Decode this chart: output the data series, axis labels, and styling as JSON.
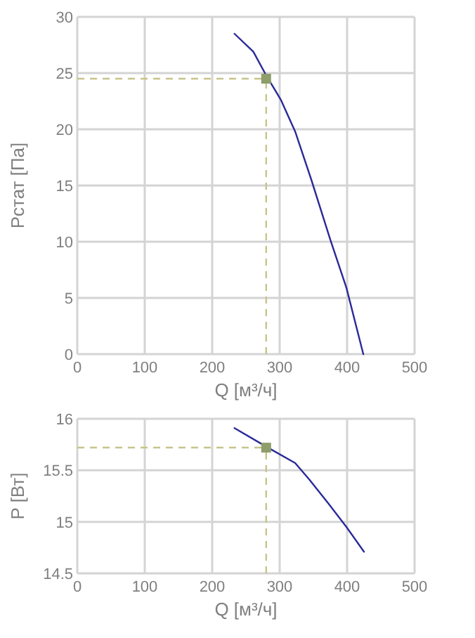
{
  "chart_data": [
    {
      "type": "line",
      "xlabel": "Q [м³/ч]",
      "ylabel": "Pстат [Па]",
      "xlim": [
        0,
        500
      ],
      "ylim": [
        0,
        30
      ],
      "xticks": [
        0,
        100,
        200,
        300,
        400,
        500
      ],
      "yticks": [
        0,
        5,
        10,
        15,
        20,
        25,
        30
      ],
      "grid": true,
      "series": [
        {
          "color": "#2a2a9a",
          "x": [
            233,
            261,
            280,
            302,
            323,
            347,
            375,
            399,
            424
          ],
          "values": [
            28.5,
            26.9,
            24.8,
            22.6,
            19.8,
            15.5,
            10.2,
            5.9,
            0
          ],
          "line_style": "solid",
          "marker": "none"
        },
        {
          "type": "scatter",
          "color": "#8f9e6a",
          "x": [
            280
          ],
          "values": [
            24.5
          ],
          "marker": "square"
        }
      ],
      "ref_lines": [
        {
          "axis": "x",
          "value": 280,
          "color": "#c8c48a",
          "line_style": "dashed"
        },
        {
          "axis": "y",
          "value": 24.5,
          "color": "#c8c48a",
          "line_style": "dashed"
        }
      ]
    },
    {
      "type": "line",
      "xlabel": "Q [м³/ч]",
      "ylabel": "P [Вт]",
      "xlim": [
        0,
        500
      ],
      "ylim": [
        14.5,
        16
      ],
      "xticks": [
        0,
        100,
        200,
        300,
        400,
        500
      ],
      "yticks": [
        14.5,
        15,
        15.5,
        16
      ],
      "grid": true,
      "series": [
        {
          "color": "#2a2a9a",
          "x": [
            233,
            280,
            323,
            344,
            372,
            399,
            425
          ],
          "values": [
            15.91,
            15.73,
            15.57,
            15.41,
            15.18,
            14.95,
            14.71
          ],
          "line_style": "solid",
          "marker": "none"
        },
        {
          "type": "scatter",
          "color": "#8f9e6a",
          "x": [
            280
          ],
          "values": [
            15.72
          ],
          "marker": "square"
        }
      ],
      "ref_lines": [
        {
          "axis": "x",
          "value": 280,
          "color": "#c8c48a",
          "line_style": "dashed"
        },
        {
          "axis": "y",
          "value": 15.72,
          "color": "#c8c48a",
          "line_style": "dashed"
        }
      ]
    }
  ]
}
